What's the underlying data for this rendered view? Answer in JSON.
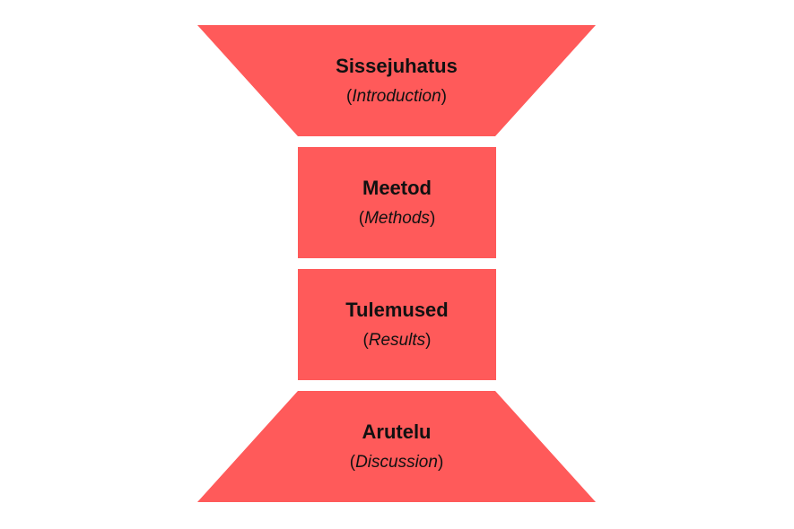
{
  "colors": {
    "fill": "#FF5A5A",
    "text": "#111111"
  },
  "sections": {
    "introduction": {
      "title": "Sissejuhatus",
      "subtitle": "Introduction"
    },
    "methods": {
      "title": "Meetod",
      "subtitle": "Methods"
    },
    "results": {
      "title": "Tulemused",
      "subtitle": "Results"
    },
    "discussion": {
      "title": "Arutelu",
      "subtitle": "Discussion"
    }
  }
}
